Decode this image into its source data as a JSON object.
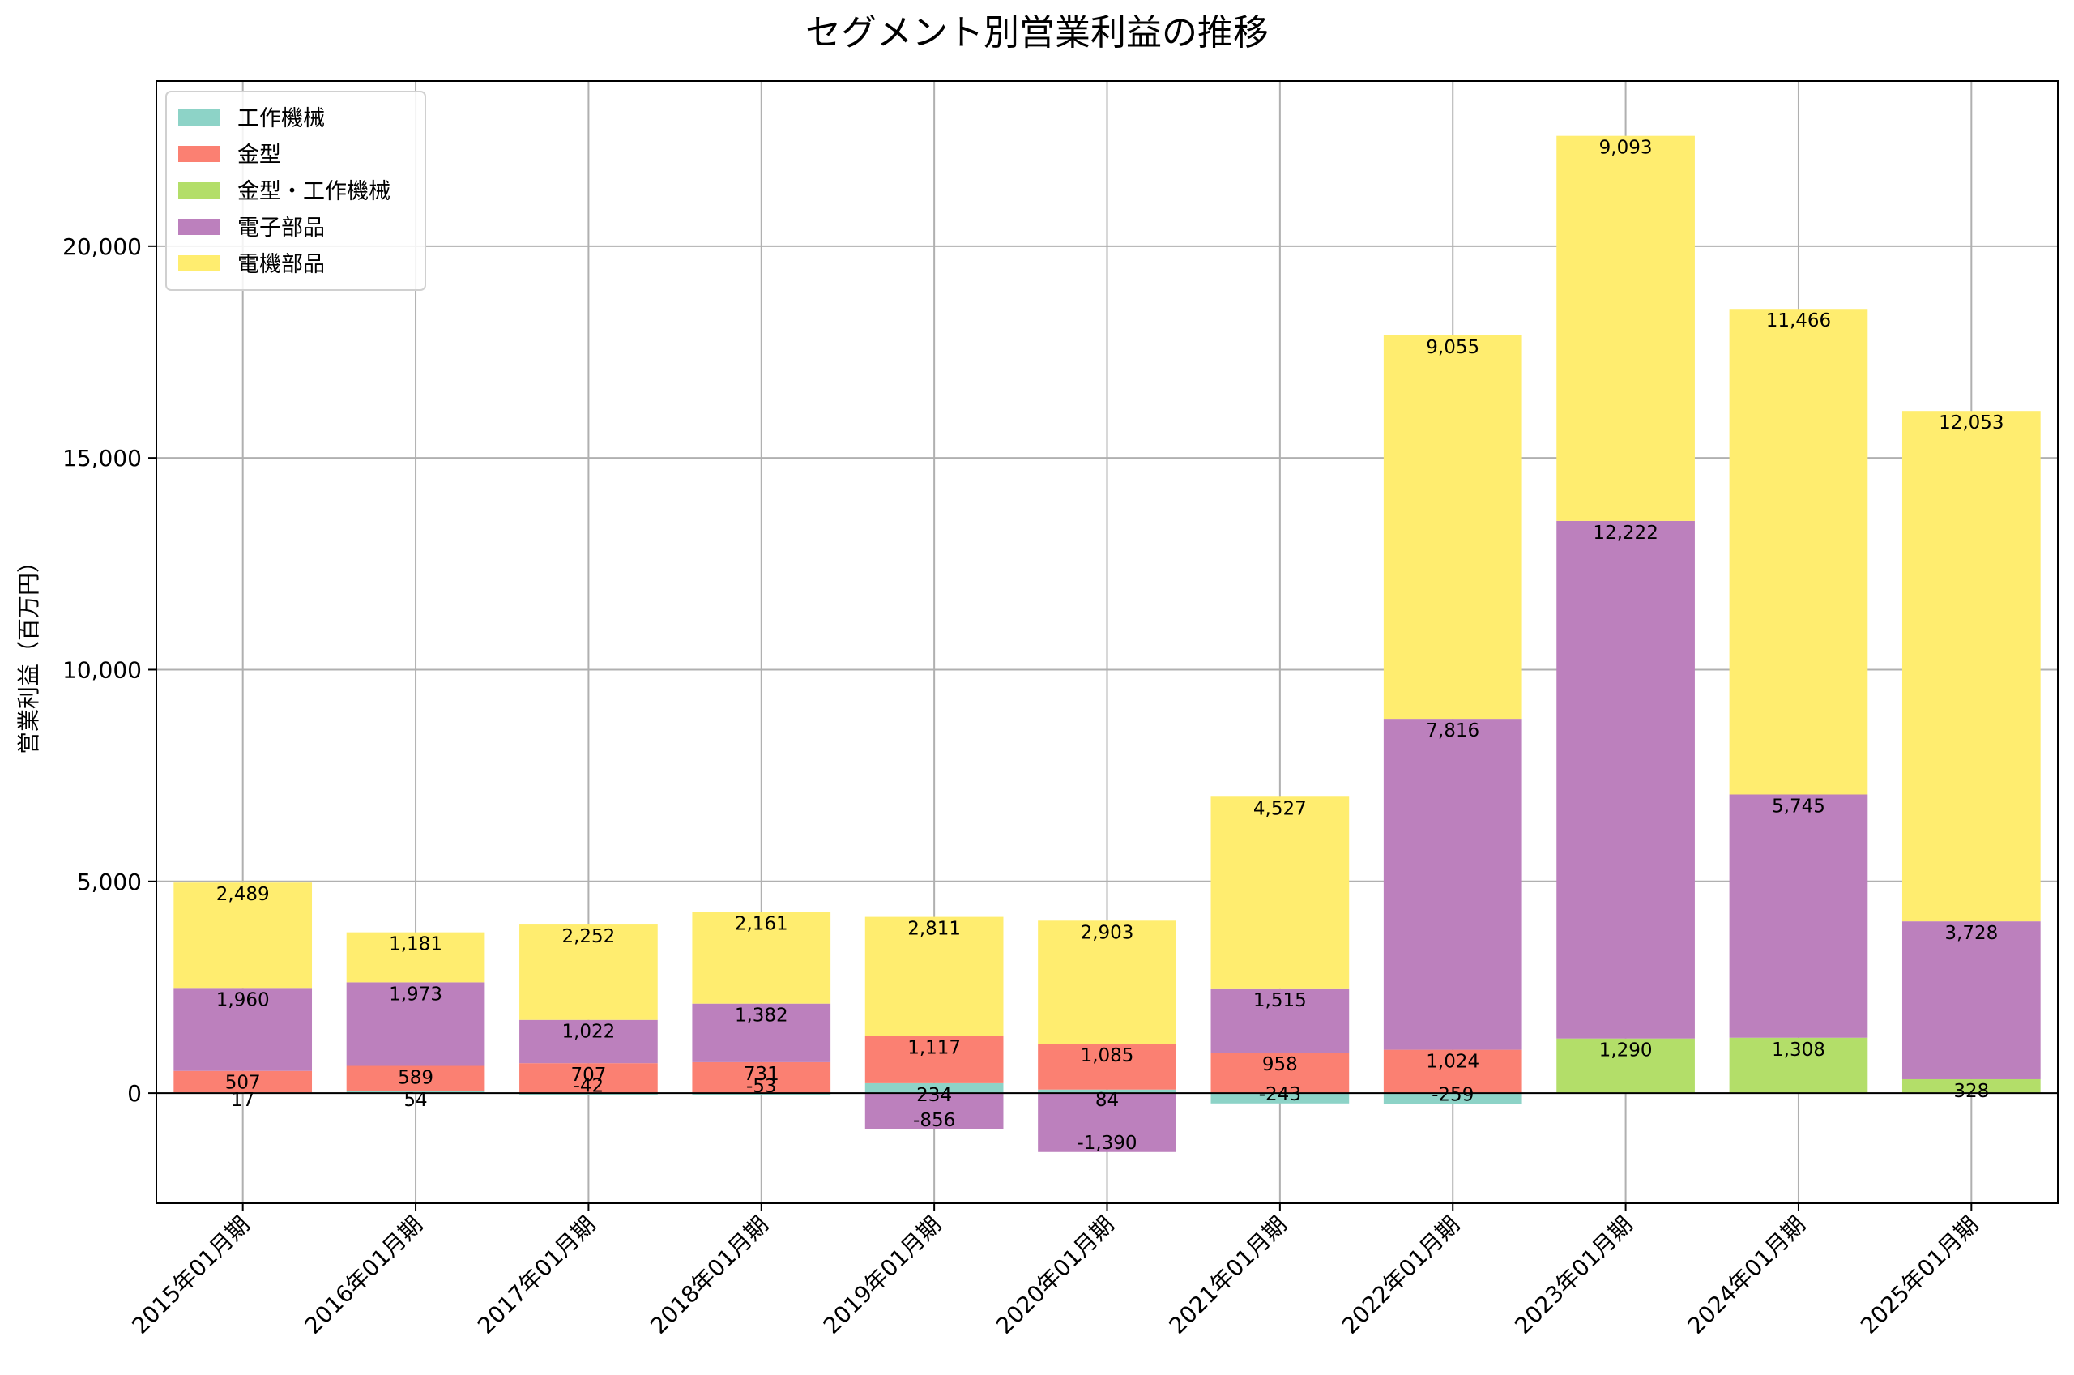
{
  "chart_data": {
    "type": "bar",
    "stacked": true,
    "title": "セグメント別営業利益の推移",
    "xlabel": "",
    "ylabel": "営業利益（百万円）",
    "ylim": [
      -2600,
      23900
    ],
    "yticks": [
      0,
      5000,
      10000,
      15000,
      20000
    ],
    "ytick_labels": [
      "0",
      "5,000",
      "10,000",
      "15,000",
      "20,000"
    ],
    "grid": true,
    "legend_position": "top-left",
    "categories": [
      "2015年01月期",
      "2016年01月期",
      "2017年01月期",
      "2018年01月期",
      "2019年01月期",
      "2020年01月期",
      "2021年01月期",
      "2022年01月期",
      "2023年01月期",
      "2024年01月期",
      "2025年01月期"
    ],
    "series": [
      {
        "name": "工作機械",
        "color": "#8dd3c7",
        "values": [
          17,
          54,
          -42,
          -53,
          234,
          84,
          -243,
          -259,
          null,
          null,
          null
        ]
      },
      {
        "name": "金型",
        "color": "#fb8072",
        "values": [
          507,
          589,
          707,
          731,
          1117,
          1085,
          958,
          1024,
          null,
          null,
          null
        ]
      },
      {
        "name": "金型・工作機械",
        "color": "#b3de69",
        "values": [
          null,
          null,
          null,
          null,
          null,
          null,
          null,
          null,
          1290,
          1308,
          328
        ]
      },
      {
        "name": "電子部品",
        "color": "#bc80bd",
        "values": [
          1960,
          1973,
          1022,
          1382,
          -856,
          -1390,
          1515,
          7816,
          12222,
          5745,
          3728
        ]
      },
      {
        "name": "電機部品",
        "color": "#ffed6f",
        "values": [
          2489,
          1181,
          2252,
          2161,
          2811,
          2903,
          4527,
          9055,
          9093,
          11466,
          12053
        ]
      }
    ]
  }
}
